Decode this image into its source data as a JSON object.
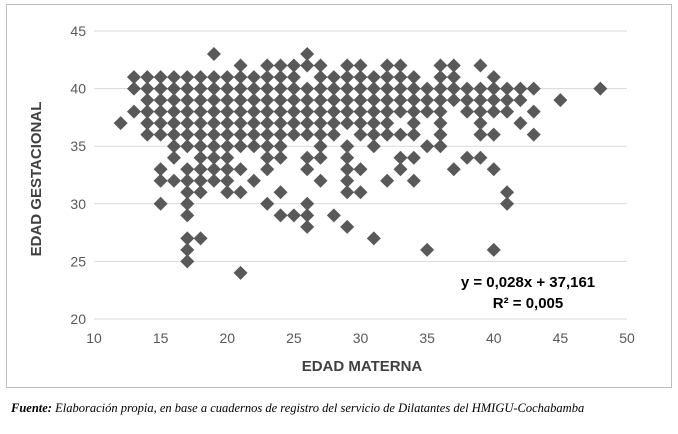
{
  "chart_data": {
    "type": "scatter",
    "xlabel": "EDAD MATERNA",
    "ylabel": "EDAD  GESTACIONAL",
    "xlim": [
      10,
      50
    ],
    "ylim": [
      20,
      45
    ],
    "x_ticks": [
      10,
      15,
      20,
      25,
      30,
      35,
      40,
      45,
      50
    ],
    "y_ticks": [
      20,
      25,
      30,
      35,
      40,
      45
    ],
    "grid": "horizontal",
    "marker": "diamond",
    "marker_color": "#595959",
    "trendline": {
      "slope": 0.028,
      "intercept": 37.161,
      "visible": false
    },
    "annotations": {
      "equation": "y = 0,028x + 37,161",
      "r2": "R² = 0,005"
    },
    "points": [
      [
        12,
        37
      ],
      [
        13,
        38
      ],
      [
        13,
        40
      ],
      [
        13,
        41
      ],
      [
        48,
        40
      ],
      [
        45,
        39
      ],
      [
        14,
        36
      ],
      [
        14,
        37
      ],
      [
        14,
        38
      ],
      [
        14,
        39
      ],
      [
        14,
        40
      ],
      [
        14,
        41
      ],
      [
        15,
        30
      ],
      [
        15,
        32
      ],
      [
        15,
        33
      ],
      [
        15,
        36
      ],
      [
        15,
        37
      ],
      [
        15,
        38
      ],
      [
        15,
        39
      ],
      [
        15,
        40
      ],
      [
        15,
        41
      ],
      [
        16,
        32
      ],
      [
        16,
        34
      ],
      [
        16,
        35
      ],
      [
        16,
        36
      ],
      [
        16,
        37
      ],
      [
        16,
        38
      ],
      [
        16,
        39
      ],
      [
        16,
        40
      ],
      [
        16,
        41
      ],
      [
        17,
        25
      ],
      [
        17,
        26
      ],
      [
        17,
        27
      ],
      [
        17,
        29
      ],
      [
        17,
        30
      ],
      [
        17,
        31
      ],
      [
        17,
        32
      ],
      [
        17,
        33
      ],
      [
        17,
        35
      ],
      [
        17,
        36
      ],
      [
        17,
        37
      ],
      [
        17,
        38
      ],
      [
        17,
        39
      ],
      [
        17,
        40
      ],
      [
        17,
        41
      ],
      [
        18,
        27
      ],
      [
        18,
        31
      ],
      [
        18,
        32
      ],
      [
        18,
        33
      ],
      [
        18,
        34
      ],
      [
        18,
        35
      ],
      [
        18,
        36
      ],
      [
        18,
        37
      ],
      [
        18,
        38
      ],
      [
        18,
        39
      ],
      [
        18,
        40
      ],
      [
        18,
        41
      ],
      [
        19,
        32
      ],
      [
        19,
        33
      ],
      [
        19,
        34
      ],
      [
        19,
        35
      ],
      [
        19,
        36
      ],
      [
        19,
        37
      ],
      [
        19,
        38
      ],
      [
        19,
        39
      ],
      [
        19,
        40
      ],
      [
        19,
        41
      ],
      [
        19,
        43
      ],
      [
        20,
        31
      ],
      [
        20,
        32
      ],
      [
        20,
        33
      ],
      [
        20,
        34
      ],
      [
        20,
        35
      ],
      [
        20,
        36
      ],
      [
        20,
        37
      ],
      [
        20,
        38
      ],
      [
        20,
        39
      ],
      [
        20,
        40
      ],
      [
        20,
        41
      ],
      [
        21,
        24
      ],
      [
        21,
        31
      ],
      [
        21,
        33
      ],
      [
        21,
        35
      ],
      [
        21,
        36
      ],
      [
        21,
        37
      ],
      [
        21,
        38
      ],
      [
        21,
        39
      ],
      [
        21,
        40
      ],
      [
        21,
        41
      ],
      [
        21,
        42
      ],
      [
        22,
        32
      ],
      [
        22,
        35
      ],
      [
        22,
        36
      ],
      [
        22,
        37
      ],
      [
        22,
        38
      ],
      [
        22,
        39
      ],
      [
        22,
        40
      ],
      [
        22,
        41
      ],
      [
        23,
        30
      ],
      [
        23,
        33
      ],
      [
        23,
        34
      ],
      [
        23,
        35
      ],
      [
        23,
        36
      ],
      [
        23,
        37
      ],
      [
        23,
        38
      ],
      [
        23,
        39
      ],
      [
        23,
        40
      ],
      [
        23,
        41
      ],
      [
        23,
        42
      ],
      [
        24,
        29
      ],
      [
        24,
        31
      ],
      [
        24,
        34
      ],
      [
        24,
        35
      ],
      [
        24,
        36
      ],
      [
        24,
        37
      ],
      [
        24,
        38
      ],
      [
        24,
        39
      ],
      [
        24,
        40
      ],
      [
        24,
        41
      ],
      [
        24,
        42
      ],
      [
        25,
        29
      ],
      [
        25,
        36
      ],
      [
        25,
        37
      ],
      [
        25,
        38
      ],
      [
        25,
        39
      ],
      [
        25,
        40
      ],
      [
        25,
        41
      ],
      [
        25,
        42
      ],
      [
        26,
        28
      ],
      [
        26,
        29
      ],
      [
        26,
        30
      ],
      [
        26,
        33
      ],
      [
        26,
        34
      ],
      [
        26,
        36
      ],
      [
        26,
        37
      ],
      [
        26,
        38
      ],
      [
        26,
        39
      ],
      [
        26,
        40
      ],
      [
        26,
        42
      ],
      [
        26,
        43
      ],
      [
        27,
        32
      ],
      [
        27,
        34
      ],
      [
        27,
        35
      ],
      [
        27,
        36
      ],
      [
        27,
        37
      ],
      [
        27,
        38
      ],
      [
        27,
        39
      ],
      [
        27,
        40
      ],
      [
        27,
        41
      ],
      [
        27,
        42
      ],
      [
        28,
        29
      ],
      [
        28,
        36
      ],
      [
        28,
        37
      ],
      [
        28,
        38
      ],
      [
        28,
        39
      ],
      [
        28,
        40
      ],
      [
        28,
        41
      ],
      [
        29,
        28
      ],
      [
        29,
        31
      ],
      [
        29,
        32
      ],
      [
        29,
        33
      ],
      [
        29,
        34
      ],
      [
        29,
        35
      ],
      [
        29,
        37
      ],
      [
        29,
        38
      ],
      [
        29,
        39
      ],
      [
        29,
        40
      ],
      [
        29,
        41
      ],
      [
        29,
        42
      ],
      [
        30,
        31
      ],
      [
        30,
        33
      ],
      [
        30,
        36
      ],
      [
        30,
        37
      ],
      [
        30,
        38
      ],
      [
        30,
        39
      ],
      [
        30,
        40
      ],
      [
        30,
        41
      ],
      [
        30,
        42
      ],
      [
        31,
        27
      ],
      [
        31,
        35
      ],
      [
        31,
        36
      ],
      [
        31,
        37
      ],
      [
        31,
        38
      ],
      [
        31,
        39
      ],
      [
        31,
        40
      ],
      [
        31,
        41
      ],
      [
        32,
        32
      ],
      [
        32,
        36
      ],
      [
        32,
        37
      ],
      [
        32,
        38
      ],
      [
        32,
        39
      ],
      [
        32,
        40
      ],
      [
        32,
        41
      ],
      [
        32,
        42
      ],
      [
        33,
        33
      ],
      [
        33,
        34
      ],
      [
        33,
        36
      ],
      [
        33,
        38
      ],
      [
        33,
        39
      ],
      [
        33,
        40
      ],
      [
        33,
        41
      ],
      [
        33,
        42
      ],
      [
        34,
        32
      ],
      [
        34,
        34
      ],
      [
        34,
        36
      ],
      [
        34,
        37
      ],
      [
        34,
        38
      ],
      [
        34,
        39
      ],
      [
        34,
        40
      ],
      [
        34,
        41
      ],
      [
        35,
        26
      ],
      [
        35,
        35
      ],
      [
        35,
        38
      ],
      [
        35,
        39
      ],
      [
        35,
        40
      ],
      [
        36,
        35
      ],
      [
        36,
        36
      ],
      [
        36,
        37
      ],
      [
        36,
        38
      ],
      [
        36,
        39
      ],
      [
        36,
        40
      ],
      [
        36,
        41
      ],
      [
        36,
        42
      ],
      [
        37,
        33
      ],
      [
        37,
        39
      ],
      [
        37,
        40
      ],
      [
        37,
        41
      ],
      [
        37,
        42
      ],
      [
        38,
        34
      ],
      [
        38,
        38
      ],
      [
        38,
        39
      ],
      [
        38,
        40
      ],
      [
        39,
        34
      ],
      [
        39,
        36
      ],
      [
        39,
        37
      ],
      [
        39,
        38
      ],
      [
        39,
        39
      ],
      [
        39,
        40
      ],
      [
        39,
        42
      ],
      [
        40,
        26
      ],
      [
        40,
        33
      ],
      [
        40,
        36
      ],
      [
        40,
        38
      ],
      [
        40,
        39
      ],
      [
        40,
        40
      ],
      [
        40,
        41
      ],
      [
        41,
        30
      ],
      [
        41,
        31
      ],
      [
        41,
        38
      ],
      [
        41,
        39
      ],
      [
        41,
        40
      ],
      [
        42,
        37
      ],
      [
        42,
        39
      ],
      [
        42,
        40
      ],
      [
        43,
        36
      ],
      [
        43,
        38
      ],
      [
        43,
        40
      ]
    ]
  },
  "source": {
    "label": "Fuente:",
    "text": " Elaboración propia, en base a cuadernos de registro del servicio de Dilatantes del HMIGU-Cochabamba"
  }
}
